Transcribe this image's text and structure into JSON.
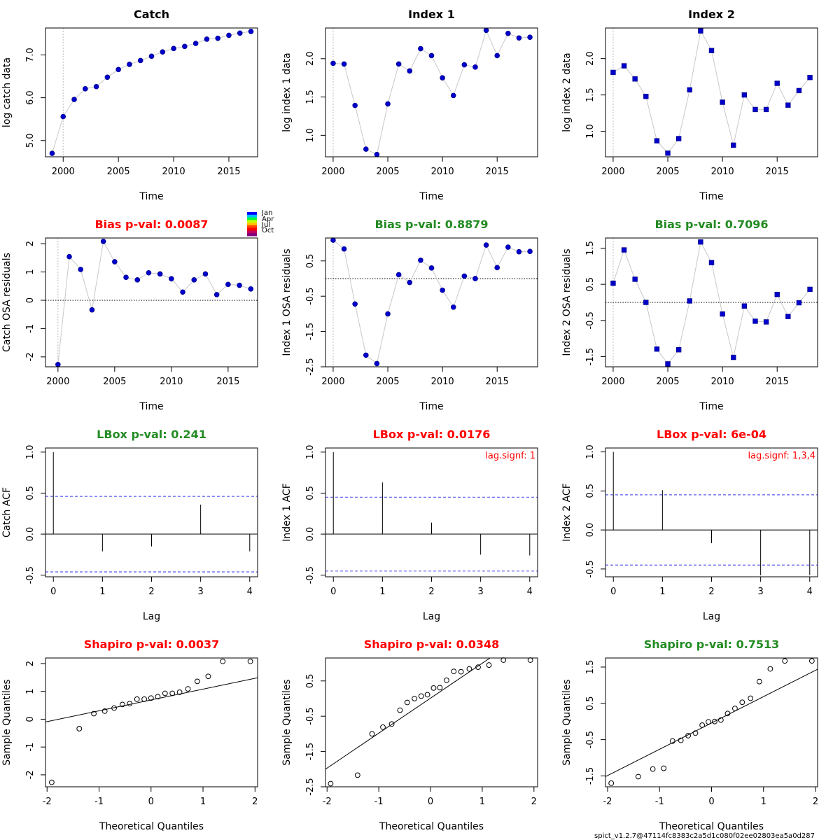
{
  "footer": "spict_v1.2.7@47114fc8383c2a5d1c080f02ee02803ea5a0d287",
  "legend": {
    "labels": [
      "Jan",
      "Apr",
      "Jul",
      "Oct"
    ],
    "colors": [
      "#0000ff",
      "#00c0ff",
      "#00ff40",
      "#c0ff00",
      "#ffc000",
      "#ff4000",
      "#ff0000",
      "#c00060",
      "#800080"
    ]
  },
  "colors": {
    "sig_fail": "#ff0000",
    "sig_ok": "#228b22",
    "points": "#0000cd",
    "connect": "#c8c8c8",
    "ci": "#5b5bf0"
  },
  "chart_data": [
    {
      "type": "scatter",
      "panel": "catch-data",
      "title": "Catch",
      "xlabel": "Time",
      "ylabel": "log catch data",
      "xlim": [
        1998.4,
        2017.6
      ],
      "ylim": [
        4.62,
        7.63
      ],
      "xticks": [
        2000,
        2005,
        2010,
        2015
      ],
      "yticks": [
        5.0,
        6.0,
        7.0
      ],
      "ytick_labels": [
        "5.0",
        "6.0",
        "7.0"
      ],
      "x": [
        1999,
        2000,
        2001,
        2002,
        2003,
        2004,
        2005,
        2006,
        2007,
        2008,
        2009,
        2010,
        2011,
        2012,
        2013,
        2014,
        2015,
        2016,
        2017
      ],
      "y": [
        4.7,
        5.56,
        5.96,
        6.21,
        6.26,
        6.48,
        6.66,
        6.78,
        6.87,
        6.97,
        7.07,
        7.15,
        7.2,
        7.27,
        7.37,
        7.39,
        7.46,
        7.51,
        7.55
      ],
      "marker": "circle",
      "vline": 2000
    },
    {
      "type": "scatter",
      "panel": "index1-data",
      "title": "Index 1",
      "xlabel": "Time",
      "ylabel": "log index 1 data",
      "xlim": [
        1999.3,
        2018.7
      ],
      "ylim": [
        0.72,
        2.4
      ],
      "xticks": [
        2000,
        2005,
        2010,
        2015
      ],
      "yticks": [
        1.0,
        1.5,
        2.0
      ],
      "ytick_labels": [
        "1.0",
        "1.5",
        "2.0"
      ],
      "x": [
        2000,
        2001,
        2002,
        2003,
        2004,
        2005,
        2006,
        2007,
        2008,
        2009,
        2010,
        2011,
        2012,
        2013,
        2014,
        2015,
        2016,
        2017,
        2018
      ],
      "y": [
        1.94,
        1.93,
        1.39,
        0.82,
        0.75,
        1.41,
        1.93,
        1.84,
        2.13,
        2.04,
        1.75,
        1.52,
        1.92,
        1.89,
        2.37,
        2.04,
        2.33,
        2.27,
        2.28
      ],
      "marker": "circle",
      "vline": 2000
    },
    {
      "type": "scatter",
      "panel": "index2-data",
      "title": "Index 2",
      "xlabel": "Time",
      "ylabel": "log index 2 data",
      "xlim": [
        1999.3,
        2018.7
      ],
      "ylim": [
        0.65,
        2.42
      ],
      "xticks": [
        2000,
        2005,
        2010,
        2015
      ],
      "yticks": [
        1.0,
        1.5,
        2.0
      ],
      "ytick_labels": [
        "1.0",
        "1.5",
        "2.0"
      ],
      "x": [
        2000,
        2001,
        2002,
        2003,
        2004,
        2005,
        2006,
        2007,
        2008,
        2009,
        2010,
        2011,
        2012,
        2013,
        2014,
        2015,
        2016,
        2017,
        2018
      ],
      "y": [
        1.81,
        1.9,
        1.72,
        1.48,
        0.87,
        0.7,
        0.9,
        1.57,
        2.38,
        2.11,
        1.4,
        0.81,
        1.5,
        1.3,
        1.3,
        1.66,
        1.36,
        1.56,
        1.74
      ],
      "marker": "square",
      "vline": 2000
    },
    {
      "type": "scatter",
      "panel": "catch-residuals",
      "title": "Bias p-val: 0.0087",
      "title_color": "#ff0000",
      "xlabel": "Time",
      "ylabel": "Catch OSA residuals",
      "xlim": [
        1998.9,
        2017.6
      ],
      "ylim": [
        -2.35,
        2.2
      ],
      "xticks": [
        2000,
        2005,
        2010,
        2015
      ],
      "yticks": [
        -2,
        -1,
        0,
        1,
        2
      ],
      "ytick_labels": [
        "-2",
        "-1",
        "0",
        "1",
        "2"
      ],
      "x": [
        2000,
        2001,
        2002,
        2003,
        2004,
        2005,
        2006,
        2007,
        2008,
        2009,
        2010,
        2011,
        2012,
        2013,
        2014,
        2015,
        2016,
        2017
      ],
      "y": [
        -2.27,
        1.54,
        1.09,
        -0.34,
        2.08,
        1.36,
        0.81,
        0.72,
        0.97,
        0.93,
        0.76,
        0.29,
        0.72,
        0.93,
        0.2,
        0.56,
        0.53,
        0.4
      ],
      "marker": "circle",
      "hline": 0,
      "vline": 2000
    },
    {
      "type": "scatter",
      "panel": "index1-residuals",
      "title": "Bias p-val: 0.8879",
      "title_color": "#228b22",
      "xlabel": "Time",
      "ylabel": "Index 1 OSA residuals",
      "xlim": [
        1999.3,
        2018.7
      ],
      "ylim": [
        -2.5,
        1.15
      ],
      "xticks": [
        2000,
        2005,
        2010,
        2015
      ],
      "yticks": [
        -2.5,
        -1.5,
        -0.5,
        0.5
      ],
      "ytick_labels": [
        "-2.5",
        "-1.5",
        "-0.5",
        "0.5"
      ],
      "x": [
        2000,
        2001,
        2002,
        2003,
        2004,
        2005,
        2006,
        2007,
        2008,
        2009,
        2010,
        2011,
        2012,
        2013,
        2014,
        2015,
        2016,
        2017,
        2018
      ],
      "y": [
        1.09,
        0.84,
        -0.72,
        -2.17,
        -2.41,
        -1.0,
        0.11,
        -0.11,
        0.52,
        0.3,
        -0.33,
        -0.81,
        0.07,
        0.0,
        0.95,
        0.31,
        0.89,
        0.76,
        0.77
      ],
      "marker": "circle",
      "hline": 0,
      "vline": 2000
    },
    {
      "type": "scatter",
      "panel": "index2-residuals",
      "title": "Bias p-val: 0.7096",
      "title_color": "#228b22",
      "xlabel": "Time",
      "ylabel": "Index 2 OSA residuals",
      "xlim": [
        1999.3,
        2018.7
      ],
      "ylim": [
        -1.78,
        1.78
      ],
      "xticks": [
        2000,
        2005,
        2010,
        2015
      ],
      "yticks": [
        -1.5,
        -0.5,
        0.5,
        1.5
      ],
      "ytick_labels": [
        "-1.5",
        "-0.5",
        "0.5",
        "1.5"
      ],
      "x": [
        2000,
        2001,
        2002,
        2003,
        2004,
        2005,
        2006,
        2007,
        2008,
        2009,
        2010,
        2011,
        2012,
        2013,
        2014,
        2015,
        2016,
        2017,
        2018
      ],
      "y": [
        0.53,
        1.45,
        0.64,
        0.0,
        -1.29,
        -1.7,
        -1.31,
        0.04,
        1.67,
        1.1,
        -0.32,
        -1.52,
        -0.1,
        -0.52,
        -0.54,
        0.22,
        -0.39,
        -0.01,
        0.36
      ],
      "marker": "square",
      "hline": 0,
      "vline": 2000
    },
    {
      "type": "bar",
      "panel": "catch-acf",
      "title": "LBox p-val: 0.241",
      "title_color": "#228b22",
      "xlabel": "Lag",
      "ylabel": "Catch ACF",
      "xlim": [
        -0.16,
        4.16
      ],
      "ylim": [
        -0.52,
        1.05
      ],
      "xticks": [
        0,
        1,
        2,
        3,
        4
      ],
      "yticks": [
        -0.5,
        0.0,
        0.5,
        1.0
      ],
      "ytick_labels": [
        "-0.5",
        "0.0",
        "0.5",
        "1.0"
      ],
      "lags": [
        0,
        1,
        2,
        3,
        4
      ],
      "acf": [
        1.0,
        -0.21,
        -0.15,
        0.36,
        -0.21
      ],
      "ci": 0.46,
      "signif_note": ""
    },
    {
      "type": "bar",
      "panel": "index1-acf",
      "title": "LBox p-val: 0.0176",
      "title_color": "#ff0000",
      "xlabel": "Lag",
      "ylabel": "Index 1 ACF",
      "xlim": [
        -0.16,
        4.16
      ],
      "ylim": [
        -0.52,
        1.05
      ],
      "xticks": [
        0,
        1,
        2,
        3,
        4
      ],
      "yticks": [
        -0.5,
        0.0,
        0.5,
        1.0
      ],
      "ytick_labels": [
        "-0.5",
        "0.0",
        "0.5",
        "1.0"
      ],
      "lags": [
        0,
        1,
        2,
        3,
        4
      ],
      "acf": [
        1.0,
        0.63,
        0.14,
        -0.25,
        -0.26
      ],
      "ci": 0.45,
      "signif_note": "lag.signf: 1"
    },
    {
      "type": "bar",
      "panel": "index2-acf",
      "title": "LBox p-val: 6e-04",
      "title_color": "#ff0000",
      "xlabel": "Lag",
      "ylabel": "Index 2 ACF",
      "xlim": [
        -0.16,
        4.16
      ],
      "ylim": [
        -0.6,
        1.05
      ],
      "xticks": [
        0,
        1,
        2,
        3,
        4
      ],
      "yticks": [
        -0.5,
        0.0,
        0.5,
        1.0
      ],
      "ytick_labels": [
        "-0.5",
        "0.0",
        "0.5",
        "1.0"
      ],
      "lags": [
        0,
        1,
        2,
        3,
        4
      ],
      "acf": [
        1.0,
        0.51,
        -0.17,
        -0.58,
        -0.58
      ],
      "ci": 0.45,
      "signif_note": "lag.signf: 1,3,4"
    },
    {
      "type": "scatter",
      "panel": "catch-qq",
      "title": "Shapiro p-val: 0.0037",
      "title_color": "#ff0000",
      "xlabel": "Theoretical Quantiles",
      "ylabel": "Sample Quantiles",
      "xlim": [
        -2.03,
        2.05
      ],
      "ylim": [
        -2.43,
        2.2
      ],
      "xticks": [
        -2,
        -1,
        0,
        1,
        2
      ],
      "yticks": [
        -2,
        -1,
        0,
        1,
        2
      ],
      "ytick_labels": [
        "-2",
        "-1",
        "0",
        "1",
        "2"
      ],
      "x": [
        -1.91,
        -1.38,
        -1.1,
        -0.89,
        -0.71,
        -0.55,
        -0.41,
        -0.27,
        -0.13,
        0.0,
        0.13,
        0.27,
        0.41,
        0.55,
        0.71,
        0.89,
        1.1,
        1.38,
        1.91
      ],
      "y": [
        -2.27,
        -0.34,
        0.2,
        0.29,
        0.4,
        0.53,
        0.56,
        0.72,
        0.72,
        0.76,
        0.81,
        0.93,
        0.93,
        0.97,
        1.09,
        1.36,
        1.54,
        2.08,
        2.08
      ],
      "marker": "open-circle",
      "qqline": [
        [
          -2.03,
          -0.1
        ],
        [
          2.05,
          1.49
        ]
      ]
    },
    {
      "type": "scatter",
      "panel": "index1-qq",
      "title": "Shapiro p-val: 0.0348",
      "title_color": "#ff0000",
      "xlabel": "Theoretical Quantiles",
      "ylabel": "Sample Quantiles",
      "xlim": [
        -2.03,
        2.07
      ],
      "ylim": [
        -2.5,
        1.15
      ],
      "xticks": [
        -2,
        -1,
        0,
        1,
        2
      ],
      "yticks": [
        -2.5,
        -1.5,
        -0.5,
        0.5
      ],
      "ytick_labels": [
        "-2.5",
        "-1.5",
        "-0.5",
        "0.5"
      ],
      "x": [
        -1.93,
        -1.41,
        -1.13,
        -0.92,
        -0.75,
        -0.59,
        -0.45,
        -0.31,
        -0.18,
        -0.06,
        0.06,
        0.18,
        0.31,
        0.45,
        0.59,
        0.75,
        0.92,
        1.13,
        1.41,
        1.93
      ],
      "y": [
        -2.41,
        -2.17,
        -1.0,
        -0.81,
        -0.72,
        -0.33,
        -0.11,
        0.0,
        0.07,
        0.11,
        0.3,
        0.31,
        0.52,
        0.77,
        0.76,
        0.84,
        0.89,
        0.95,
        1.09,
        1.09
      ],
      "marker": "open-circle",
      "qqline": [
        [
          -2.03,
          -2.0
        ],
        [
          1.2,
          1.2
        ]
      ]
    },
    {
      "type": "scatter",
      "panel": "index2-qq",
      "title": "Shapiro p-val: 0.7513",
      "title_color": "#228b22",
      "xlabel": "Theoretical Quantiles",
      "ylabel": "Sample Quantiles",
      "xlim": [
        -2.04,
        2.04
      ],
      "ylim": [
        -1.8,
        1.75
      ],
      "xticks": [
        -2,
        -1,
        0,
        1,
        2
      ],
      "yticks": [
        -1.5,
        -0.5,
        0.5,
        1.5
      ],
      "ytick_labels": [
        "-1.5",
        "-0.5",
        "0.5",
        "1.5"
      ],
      "x": [
        -1.93,
        -1.41,
        -1.13,
        -0.92,
        -0.75,
        -0.59,
        -0.45,
        -0.31,
        -0.18,
        -0.06,
        0.06,
        0.18,
        0.31,
        0.45,
        0.59,
        0.75,
        0.92,
        1.13,
        1.41,
        1.93
      ],
      "y": [
        -1.7,
        -1.52,
        -1.31,
        -1.29,
        -0.54,
        -0.52,
        -0.39,
        -0.32,
        -0.1,
        -0.01,
        0.0,
        0.04,
        0.22,
        0.36,
        0.53,
        0.64,
        1.1,
        1.45,
        1.67,
        1.67
      ],
      "marker": "open-circle",
      "qqline": [
        [
          -2.04,
          -1.52
        ],
        [
          2.04,
          1.44
        ]
      ]
    }
  ]
}
